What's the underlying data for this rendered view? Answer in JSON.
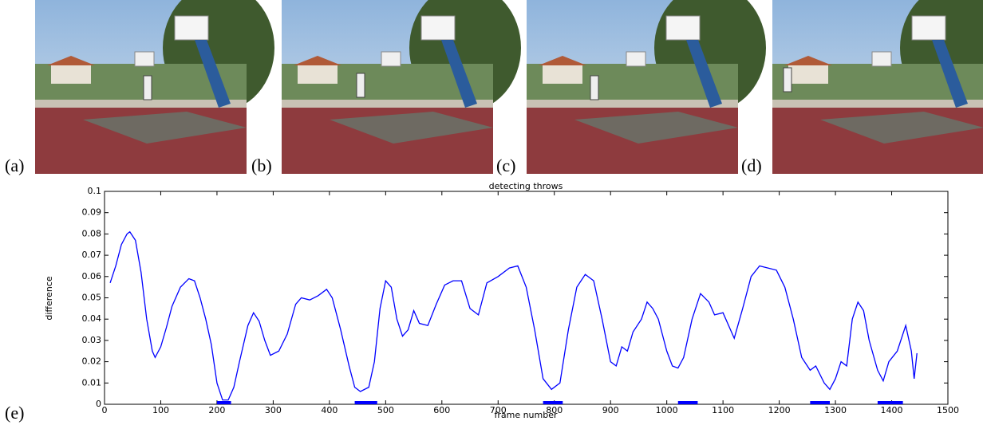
{
  "panel_labels": [
    "(a)",
    "(b)",
    "(c)",
    "(d)",
    "(e)"
  ],
  "chart_data": {
    "type": "line",
    "title": "detecting throws",
    "xlabel": "frame number",
    "ylabel": "difference",
    "xlim": [
      0,
      1500
    ],
    "xticks": [
      0,
      100,
      200,
      300,
      400,
      500,
      600,
      700,
      800,
      900,
      1000,
      1100,
      1200,
      1300,
      1400,
      1500
    ],
    "ylim": [
      0,
      0.1
    ],
    "yticks": [
      0,
      0.01,
      0.02,
      0.03,
      0.04,
      0.05,
      0.06,
      0.07,
      0.08,
      0.09,
      0.1
    ],
    "series": [
      {
        "color": "#0000ff",
        "x": [
          10,
          20,
          30,
          40,
          45,
          55,
          65,
          75,
          85,
          90,
          100,
          110,
          120,
          135,
          150,
          160,
          170,
          180,
          190,
          200,
          210,
          220,
          230,
          240,
          255,
          265,
          275,
          285,
          295,
          310,
          325,
          340,
          350,
          365,
          380,
          395,
          405,
          420,
          435,
          445,
          455,
          470,
          480,
          490,
          500,
          510,
          520,
          530,
          540,
          550,
          560,
          575,
          590,
          605,
          620,
          635,
          650,
          665,
          680,
          700,
          720,
          735,
          750,
          765,
          780,
          795,
          810,
          825,
          840,
          855,
          870,
          885,
          900,
          910,
          920,
          930,
          940,
          955,
          965,
          975,
          985,
          1000,
          1010,
          1020,
          1030,
          1045,
          1060,
          1075,
          1085,
          1100,
          1120,
          1135,
          1150,
          1165,
          1180,
          1195,
          1210,
          1225,
          1240,
          1255,
          1265,
          1280,
          1290,
          1300,
          1310,
          1320,
          1330,
          1340,
          1350,
          1360,
          1375,
          1385,
          1395,
          1410,
          1425,
          1435,
          1440,
          1445
        ],
        "values": [
          0.057,
          0.065,
          0.075,
          0.08,
          0.081,
          0.077,
          0.062,
          0.04,
          0.025,
          0.022,
          0.027,
          0.036,
          0.046,
          0.055,
          0.059,
          0.058,
          0.05,
          0.04,
          0.028,
          0.01,
          0.002,
          0.002,
          0.008,
          0.02,
          0.037,
          0.043,
          0.039,
          0.03,
          0.023,
          0.025,
          0.033,
          0.047,
          0.05,
          0.049,
          0.051,
          0.054,
          0.05,
          0.035,
          0.018,
          0.008,
          0.006,
          0.008,
          0.02,
          0.045,
          0.058,
          0.055,
          0.04,
          0.032,
          0.035,
          0.044,
          0.038,
          0.037,
          0.047,
          0.056,
          0.058,
          0.058,
          0.045,
          0.042,
          0.057,
          0.06,
          0.064,
          0.065,
          0.055,
          0.035,
          0.012,
          0.007,
          0.01,
          0.035,
          0.055,
          0.061,
          0.058,
          0.04,
          0.02,
          0.018,
          0.027,
          0.025,
          0.034,
          0.04,
          0.048,
          0.045,
          0.04,
          0.025,
          0.018,
          0.017,
          0.022,
          0.04,
          0.052,
          0.048,
          0.042,
          0.043,
          0.031,
          0.045,
          0.06,
          0.065,
          0.064,
          0.063,
          0.055,
          0.04,
          0.022,
          0.016,
          0.018,
          0.01,
          0.007,
          0.012,
          0.02,
          0.018,
          0.04,
          0.048,
          0.044,
          0.03,
          0.016,
          0.011,
          0.02,
          0.025,
          0.037,
          0.025,
          0.012,
          0.024
        ]
      }
    ],
    "detections": {
      "color": "#0000ff",
      "starts": [
        200,
        445,
        780,
        1020,
        1255,
        1375
      ],
      "ends": [
        225,
        485,
        815,
        1055,
        1290,
        1420
      ]
    }
  }
}
